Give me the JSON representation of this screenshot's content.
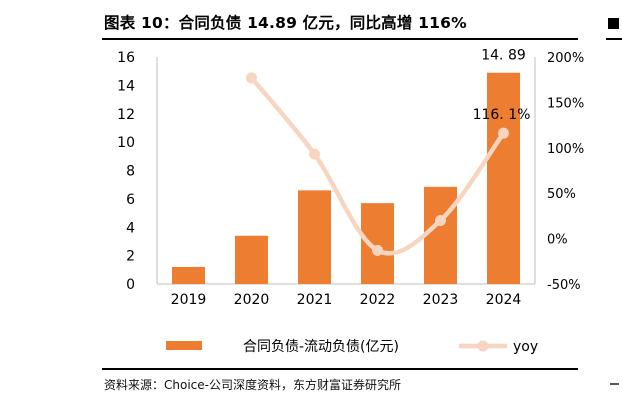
{
  "title": "图表 10：合同负债 14.89 亿元，同比高增 116%",
  "source": "资料来源：Choice-公司深度资料，东方财富证券研究所",
  "colors": {
    "bar": "#ED7D31",
    "line": "#F8D5C0",
    "text": "#000000",
    "axis": "#bfbfbf"
  },
  "chart_data": {
    "type": "bar",
    "categories": [
      "2019",
      "2020",
      "2021",
      "2022",
      "2023",
      "2024"
    ],
    "series": [
      {
        "name": "合同负债-流动负债(亿元)",
        "type": "bar",
        "axis": "left",
        "values": [
          1.2,
          3.4,
          6.6,
          5.7,
          6.85,
          14.89
        ]
      },
      {
        "name": "yoy",
        "type": "line",
        "axis": "right",
        "smooth": true,
        "values": [
          null,
          177,
          93,
          -13,
          20,
          116.1
        ]
      }
    ],
    "y_left": {
      "min": 0,
      "max": 16,
      "ticks": [
        0,
        2,
        4,
        6,
        8,
        10,
        12,
        14,
        16
      ]
    },
    "y_right": {
      "min": -50,
      "max": 200,
      "ticks": [
        "-50%",
        "0%",
        "50%",
        "100%",
        "150%",
        "200%"
      ]
    },
    "data_labels": [
      {
        "series": 0,
        "index": 5,
        "text": "14. 89"
      },
      {
        "series": 1,
        "index": 5,
        "text": "116. 1%"
      }
    ],
    "legend": {
      "position": "bottom",
      "items": [
        {
          "label": "合同负债-流动负债(亿元)",
          "marker": "bar"
        },
        {
          "label": "yoy",
          "marker": "line"
        }
      ]
    }
  }
}
